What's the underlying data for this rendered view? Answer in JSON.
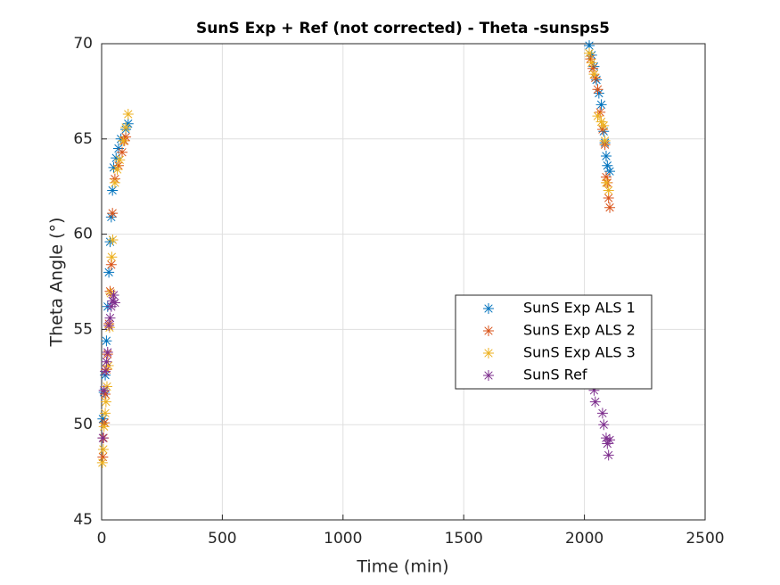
{
  "chart_data": {
    "type": "scatter",
    "title": "SunS Exp + Ref (not corrected) - Theta -sunsps5",
    "x_label": "Time (min)",
    "y_label": "Theta Angle (°)",
    "xlim": [
      0,
      2500
    ],
    "ylim": [
      45,
      70
    ],
    "xticks": [
      0,
      500,
      1000,
      1500,
      2000,
      2500
    ],
    "yticks": [
      45,
      50,
      55,
      60,
      65,
      70
    ],
    "grid": true,
    "legend": "right",
    "series": [
      {
        "name": "SunS Exp ALS 1",
        "color": "#0072BD",
        "x": [
          5,
          10,
          15,
          20,
          25,
          30,
          35,
          40,
          45,
          50,
          60,
          70,
          80,
          100,
          110,
          2020,
          2030,
          2040,
          2050,
          2060,
          2070,
          2080,
          2085,
          2090,
          2095,
          2105
        ],
        "values": [
          50.3,
          51.7,
          52.6,
          54.4,
          56.2,
          58.0,
          59.6,
          60.9,
          62.3,
          63.5,
          64.0,
          64.5,
          65.0,
          65.5,
          65.8,
          69.9,
          69.4,
          68.8,
          68.1,
          67.4,
          66.8,
          65.4,
          64.8,
          64.1,
          63.6,
          63.3
        ]
      },
      {
        "name": "SunS Exp ALS 2",
        "color": "#D95319",
        "x": [
          5,
          8,
          12,
          15,
          20,
          25,
          30,
          35,
          40,
          45,
          55,
          70,
          85,
          95,
          100,
          2025,
          2035,
          2045,
          2055,
          2065,
          2075,
          2085,
          2090,
          2095,
          2100,
          2105
        ],
        "values": [
          48.3,
          49.3,
          50.1,
          51.6,
          52.9,
          53.7,
          55.3,
          57.0,
          58.4,
          61.1,
          62.9,
          63.6,
          64.3,
          64.9,
          65.1,
          69.2,
          68.7,
          68.2,
          67.6,
          66.4,
          65.5,
          64.7,
          63.0,
          62.7,
          61.9,
          61.4
        ]
      },
      {
        "name": "SunS Exp ALS 3",
        "color": "#EDB120",
        "x": [
          3,
          7,
          10,
          15,
          18,
          22,
          28,
          33,
          38,
          42,
          46,
          55,
          65,
          75,
          90,
          100,
          110,
          2020,
          2030,
          2040,
          2055,
          2070,
          2080,
          2085,
          2090,
          2100
        ],
        "values": [
          48.0,
          48.7,
          49.9,
          50.6,
          51.2,
          52.0,
          53.1,
          55.1,
          56.9,
          58.8,
          59.7,
          62.7,
          63.4,
          63.9,
          64.9,
          65.6,
          66.3,
          69.5,
          69.0,
          68.4,
          66.2,
          65.9,
          65.7,
          64.9,
          62.7,
          62.3
        ]
      },
      {
        "name": "SunS Ref",
        "color": "#7E2F8E",
        "x": [
          5,
          10,
          15,
          20,
          25,
          30,
          35,
          40,
          45,
          50,
          55,
          2040,
          2045,
          2075,
          2080,
          2090,
          2095,
          2100,
          2105
        ],
        "values": [
          49.3,
          51.8,
          52.8,
          53.3,
          53.8,
          55.2,
          55.6,
          56.2,
          56.5,
          56.8,
          56.4,
          51.8,
          51.2,
          50.6,
          50.0,
          49.3,
          49.0,
          48.4,
          49.2
        ]
      }
    ]
  }
}
